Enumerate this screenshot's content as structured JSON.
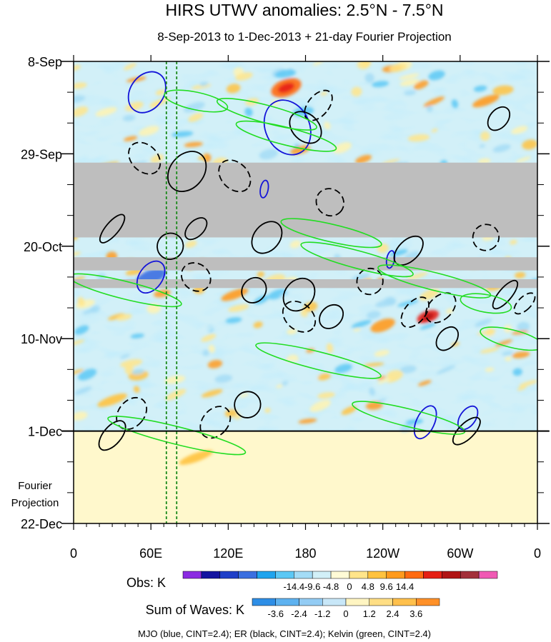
{
  "chart_data": {
    "type": "heatmap",
    "title": "HIRS UTWV anomalies: 2.5°N - 7.5°N",
    "subtitle": "8-Sep-2013 to 1-Dec-2013 + 21-day Fourier Projection",
    "x_axis": {
      "ticks": [
        "0",
        "60E",
        "120E",
        "180",
        "120W",
        "60W",
        "0"
      ],
      "range_deg": [
        0,
        360
      ]
    },
    "y_axis": {
      "ticks": [
        "8-Sep",
        "29-Sep",
        "20-Oct",
        "10-Nov",
        "1-Dec",
        "22-Dec"
      ],
      "range_days": [
        0,
        105
      ],
      "observed_end_day": 84
    },
    "projection_label": [
      "Fourier",
      "Projection"
    ],
    "reference_longitudes": [
      72,
      80
    ],
    "missing_bands_days": [
      [
        23,
        40
      ],
      [
        44.5,
        47.5
      ],
      [
        49.5,
        51.5
      ]
    ],
    "obs_colorbar": {
      "label": "Obs: K",
      "levels": [
        "-14.4",
        "-9.6",
        "-4.8",
        "0",
        "4.8",
        "9.6",
        "14.4"
      ],
      "colors": [
        "#8b2be2",
        "#1414a0",
        "#1f3fc8",
        "#3a6fe0",
        "#1fa4ee",
        "#5cc8f5",
        "#a4dcf6",
        "#d2f0f8",
        "#fffbd6",
        "#ffe58a",
        "#ffc23e",
        "#ff9a1c",
        "#ff6a10",
        "#e51f14",
        "#b01414",
        "#a3303a",
        "#f05ab4"
      ]
    },
    "waves_colorbar": {
      "label": "Sum of Waves: K",
      "levels": [
        "-3.6",
        "-2.4",
        "-1.2",
        "0",
        "1.2",
        "2.4",
        "3.6"
      ],
      "colors": [
        "#2e8ee6",
        "#5eb2f0",
        "#93ccf4",
        "#c8e7f8",
        "#fff5c2",
        "#ffde84",
        "#ffc04c",
        "#ff9028"
      ]
    },
    "contours": [
      {
        "name": "MJO",
        "color": "#1414d8",
        "cint": 2.4
      },
      {
        "name": "ER",
        "color": "#000000",
        "cint": 2.4
      },
      {
        "name": "Kelvin",
        "color": "#22dd22",
        "cint": 2.4
      }
    ]
  },
  "footer": "MJO (blue, CINT=2.4); ER (black, CINT=2.4); Kelvin (green, CINT=2.4)"
}
